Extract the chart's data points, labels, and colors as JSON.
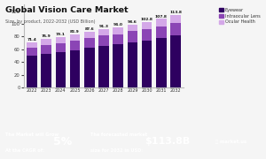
{
  "title": "Global Vision Care Market",
  "subtitle": "Size, by product, 2022-2032 (USD Billion)",
  "years": [
    2022,
    2023,
    2024,
    2025,
    2026,
    2027,
    2028,
    2029,
    2030,
    2031,
    2032
  ],
  "totals": [
    71.4,
    76.9,
    79.1,
    82.9,
    87.6,
    91.3,
    94.0,
    98.6,
    102.8,
    107.8,
    113.8
  ],
  "eyewear": [
    50.0,
    53.0,
    55.0,
    59.0,
    63.0,
    65.5,
    67.5,
    71.0,
    74.0,
    77.5,
    81.5
  ],
  "intraocular": [
    13.0,
    14.0,
    14.5,
    14.5,
    15.0,
    16.0,
    16.5,
    17.5,
    18.0,
    19.0,
    20.0
  ],
  "ocular": [
    8.4,
    9.9,
    9.6,
    9.4,
    9.6,
    9.8,
    10.0,
    10.1,
    10.8,
    11.3,
    12.3
  ],
  "color_eyewear": "#2e0060",
  "color_intraocular": "#8b45b5",
  "color_ocular": "#d4a8e8",
  "bg_chart": "#f5f5f5",
  "bg_footer": "#7b2fbe",
  "ylim": [
    0,
    130
  ],
  "yticks": [
    0,
    20,
    40,
    60,
    80,
    100,
    120
  ],
  "footer_text1": "The Market will Grow",
  "footer_text2": "At the CAGR of:",
  "footer_cagr": "5%",
  "footer_text3": "The forecasted market",
  "footer_text4": "size for 2032 in USD:",
  "footer_value": "$113.8B",
  "footer_logo": "Ⓜ market.us"
}
